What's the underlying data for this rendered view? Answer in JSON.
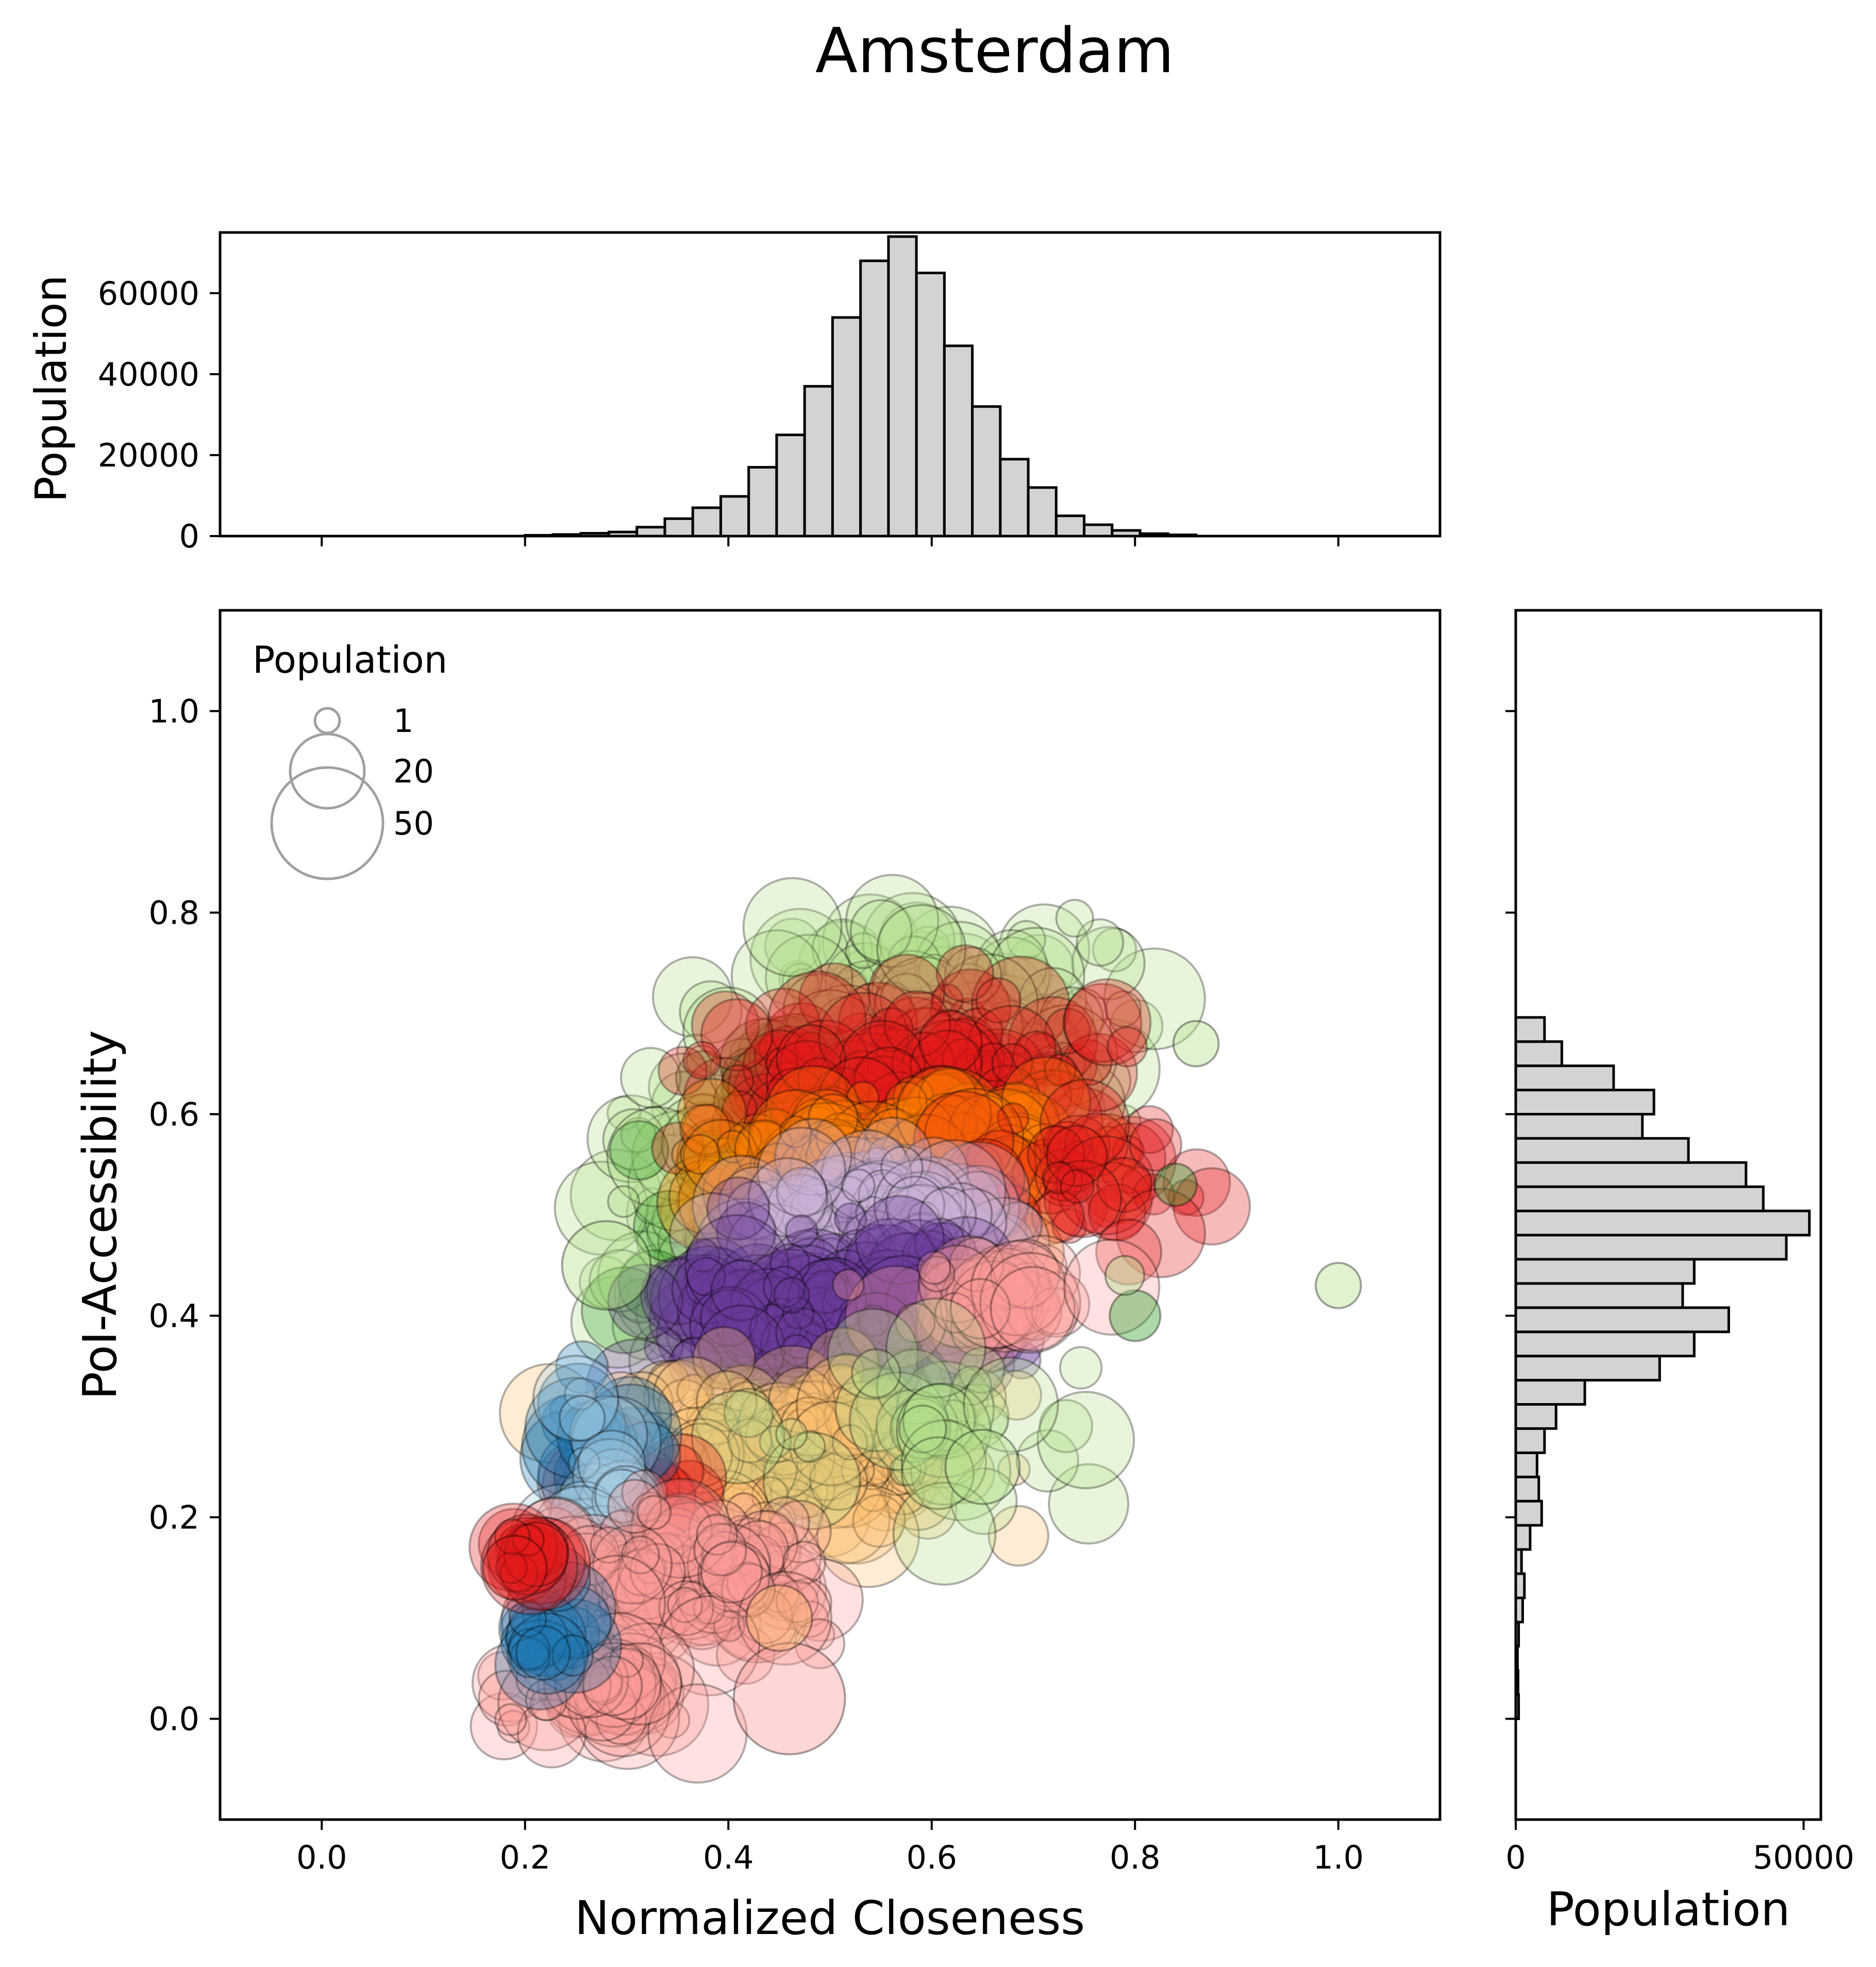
{
  "title": "Amsterdam",
  "colors": {
    "hist_fill": "#d3d3d3",
    "edge": "#000000",
    "legend_marker": "#a0a0a0",
    "group_palette": [
      "#b2df8a",
      "#33a02c",
      "#e31a1c",
      "#ff7f00",
      "#cab2d6",
      "#6a3d9a",
      "#fdbf6f",
      "#1f78b4",
      "#a6cee3",
      "#fb9a99"
    ]
  },
  "chart_data": [
    {
      "type": "scatter",
      "panel": "main",
      "xlabel": "Normalized Closeness",
      "ylabel": "PoI-Accessibility",
      "xlim": [
        -0.1,
        1.1
      ],
      "ylim": [
        -0.1,
        1.1
      ],
      "xticks": [
        "0.0",
        "0.2",
        "0.4",
        "0.6",
        "0.8",
        "1.0"
      ],
      "yticks": [
        "0.0",
        "0.2",
        "0.4",
        "0.6",
        "0.8",
        "1.0"
      ],
      "legend": {
        "title": "Population",
        "placement": "top-left",
        "entries": [
          {
            "label": "1",
            "size": 1
          },
          {
            "label": "20",
            "size": 20
          },
          {
            "label": "50",
            "size": 50
          }
        ]
      },
      "groups": [
        {
          "color": "#b2df8a",
          "cx": 0.6,
          "cy": 0.68,
          "sx": 0.09,
          "sy": 0.045,
          "n": 170
        },
        {
          "color": "#b2df8a",
          "cx": 0.37,
          "cy": 0.5,
          "sx": 0.05,
          "sy": 0.07,
          "n": 80
        },
        {
          "color": "#33a02c",
          "cx": 0.45,
          "cy": 0.5,
          "sx": 0.07,
          "sy": 0.08,
          "n": 60
        },
        {
          "color": "#e31a1c",
          "cx": 0.58,
          "cy": 0.63,
          "sx": 0.09,
          "sy": 0.04,
          "n": 170
        },
        {
          "color": "#ff7f00",
          "cx": 0.56,
          "cy": 0.55,
          "sx": 0.09,
          "sy": 0.035,
          "n": 170
        },
        {
          "color": "#e31a1c",
          "cx": 0.75,
          "cy": 0.54,
          "sx": 0.05,
          "sy": 0.03,
          "n": 40
        },
        {
          "color": "#cab2d6",
          "cx": 0.54,
          "cy": 0.5,
          "sx": 0.06,
          "sy": 0.025,
          "n": 120
        },
        {
          "color": "#6a3d9a",
          "cx": 0.5,
          "cy": 0.4,
          "sx": 0.08,
          "sy": 0.04,
          "n": 200
        },
        {
          "color": "#fb9a99",
          "cx": 0.66,
          "cy": 0.42,
          "sx": 0.06,
          "sy": 0.02,
          "n": 40
        },
        {
          "color": "#fdbf6f",
          "cx": 0.47,
          "cy": 0.26,
          "sx": 0.09,
          "sy": 0.04,
          "n": 170
        },
        {
          "color": "#b2df8a",
          "cx": 0.6,
          "cy": 0.28,
          "sx": 0.08,
          "sy": 0.04,
          "n": 40
        },
        {
          "color": "#e31a1c",
          "cx": 0.3,
          "cy": 0.22,
          "sx": 0.03,
          "sy": 0.02,
          "n": 40
        },
        {
          "color": "#1f78b4",
          "cx": 0.27,
          "cy": 0.27,
          "sx": 0.02,
          "sy": 0.03,
          "n": 30
        },
        {
          "color": "#a6cee3",
          "cx": 0.27,
          "cy": 0.22,
          "sx": 0.02,
          "sy": 0.05,
          "n": 30
        },
        {
          "color": "#fb9a99",
          "cx": 0.36,
          "cy": 0.14,
          "sx": 0.06,
          "sy": 0.035,
          "n": 130
        },
        {
          "color": "#fb9a99",
          "cx": 0.27,
          "cy": 0.03,
          "sx": 0.04,
          "sy": 0.02,
          "n": 60
        },
        {
          "color": "#1f78b4",
          "cx": 0.23,
          "cy": 0.09,
          "sx": 0.015,
          "sy": 0.03,
          "n": 20
        },
        {
          "color": "#e31a1c",
          "cx": 0.21,
          "cy": 0.16,
          "sx": 0.015,
          "sy": 0.01,
          "n": 20
        }
      ],
      "single_points": [
        {
          "x": 1.0,
          "y": 0.43,
          "size": 6,
          "color": "#b2df8a"
        },
        {
          "x": 0.46,
          "y": 0.02,
          "size": 50,
          "color": "#fb9a99"
        },
        {
          "x": 0.45,
          "y": 0.1,
          "size": 15,
          "color": "#fdbf6f"
        },
        {
          "x": 0.86,
          "y": 0.67,
          "size": 6,
          "color": "#b2df8a"
        },
        {
          "x": 0.84,
          "y": 0.53,
          "size": 5,
          "color": "#33a02c"
        },
        {
          "x": 0.8,
          "y": 0.4,
          "size": 8,
          "color": "#33a02c"
        },
        {
          "x": 0.79,
          "y": 0.44,
          "size": 4,
          "color": "#b2df8a"
        },
        {
          "x": 0.28,
          "y": 0.45,
          "size": 30,
          "color": "#b2df8a"
        },
        {
          "x": 0.65,
          "y": 0.25,
          "size": 20,
          "color": "#b2df8a"
        },
        {
          "x": 0.19,
          "y": 0.15,
          "size": 14,
          "color": "#e31a1c"
        }
      ]
    },
    {
      "type": "bar",
      "panel": "top-histogram",
      "ylabel": "Population",
      "xlim": [
        -0.1,
        1.1
      ],
      "ylim": [
        0,
        75000
      ],
      "yticks": [
        "0",
        "20000",
        "40000",
        "60000"
      ],
      "bin_width": 0.0275,
      "bin_starts": [
        0.2,
        0.2275,
        0.255,
        0.2825,
        0.31,
        0.3375,
        0.365,
        0.3925,
        0.42,
        0.4475,
        0.475,
        0.5025,
        0.53,
        0.5575,
        0.585,
        0.6125,
        0.64,
        0.6675,
        0.695,
        0.7225,
        0.75,
        0.7775,
        0.805,
        0.8325
      ],
      "values": [
        200,
        400,
        700,
        1000,
        2200,
        4300,
        7000,
        9800,
        17000,
        25000,
        37000,
        54000,
        68000,
        74000,
        65000,
        47000,
        32000,
        19000,
        12000,
        5000,
        2800,
        1400,
        600,
        300
      ]
    },
    {
      "type": "bar",
      "orientation": "horizontal",
      "panel": "right-histogram",
      "xlabel": "Population",
      "xlim": [
        0,
        53000
      ],
      "xticks": [
        "0",
        "50000"
      ],
      "ylim": [
        -0.1,
        1.1
      ],
      "bin_height": 0.024,
      "bin_starts": [
        0.0,
        0.024,
        0.048,
        0.072,
        0.096,
        0.12,
        0.144,
        0.168,
        0.192,
        0.216,
        0.24,
        0.264,
        0.288,
        0.312,
        0.336,
        0.36,
        0.384,
        0.408,
        0.432,
        0.456,
        0.48,
        0.504,
        0.528,
        0.552,
        0.576,
        0.6,
        0.624,
        0.648,
        0.672,
        0.696,
        0.72
      ],
      "values": [
        500,
        400,
        300,
        500,
        1200,
        1500,
        1000,
        2500,
        4500,
        4000,
        3700,
        5000,
        7000,
        12000,
        25000,
        31000,
        37000,
        29000,
        31000,
        47000,
        51000,
        43000,
        40000,
        30000,
        22000,
        24000,
        17000,
        8000,
        5000,
        0,
        0
      ]
    }
  ]
}
